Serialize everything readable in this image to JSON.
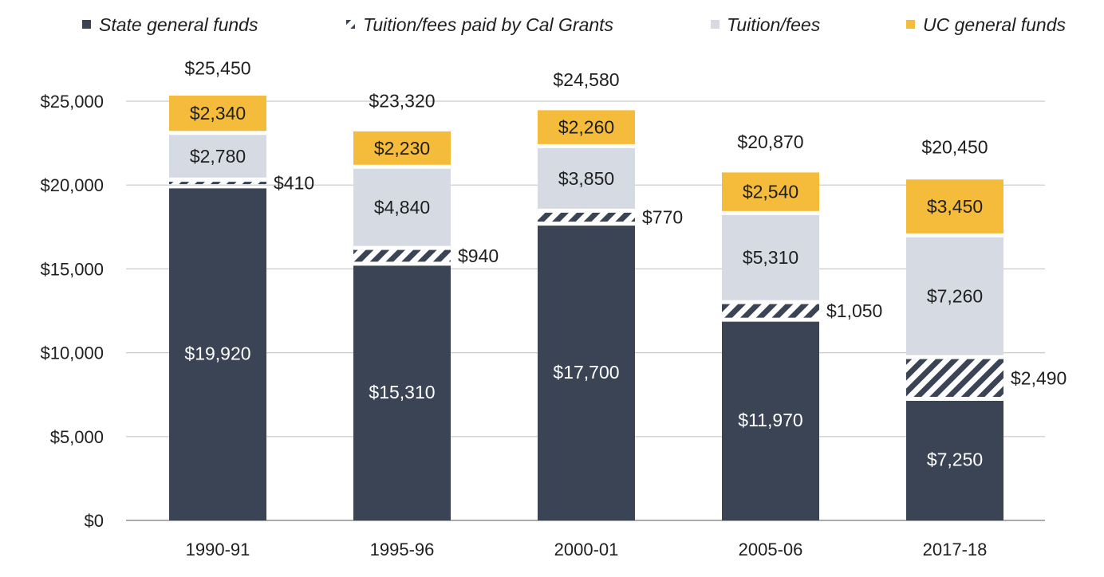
{
  "chart_data": {
    "type": "bar",
    "stacked": true,
    "categories": [
      "1990-91",
      "1995-96",
      "2000-01",
      "2005-06",
      "2017-18"
    ],
    "series": [
      {
        "name": "State general funds",
        "color": "#3b4455",
        "pattern": "solid",
        "values": [
          19920,
          15310,
          17700,
          11970,
          7250
        ],
        "labels": [
          "$19,920",
          "$15,310",
          "$17,700",
          "$11,970",
          "$7,250"
        ]
      },
      {
        "name": "Tuition/fees paid by Cal Grants",
        "color": "#3b4455",
        "pattern": "diagonal-hatch",
        "values": [
          410,
          940,
          770,
          1050,
          2490
        ],
        "labels": [
          "$410",
          "$940",
          "$770",
          "$1,050",
          "$2,490"
        ]
      },
      {
        "name": "Tuition/fees",
        "color": "#d6dae3",
        "pattern": "solid",
        "values": [
          2780,
          4840,
          3850,
          5310,
          7260
        ],
        "labels": [
          "$2,780",
          "$4,840",
          "$3,850",
          "$5,310",
          "$7,260"
        ]
      },
      {
        "name": "UC general funds",
        "color": "#f5bb3b",
        "pattern": "solid",
        "values": [
          2340,
          2230,
          2260,
          2540,
          3450
        ],
        "labels": [
          "$2,340",
          "$2,230",
          "$2,260",
          "$2,540",
          "$3,450"
        ]
      }
    ],
    "totals": [
      25450,
      23320,
      24580,
      20870,
      20450
    ],
    "total_labels": [
      "$25,450",
      "$23,320",
      "$24,580",
      "$20,870",
      "$20,450"
    ],
    "y_ticks": [
      0,
      5000,
      10000,
      15000,
      20000,
      25000
    ],
    "y_tick_labels": [
      "$0",
      "$5,000",
      "$10,000",
      "$15,000",
      "$20,000",
      "$25,000"
    ],
    "ylim": [
      0,
      25000
    ],
    "grid": true,
    "legend_position": "top"
  }
}
